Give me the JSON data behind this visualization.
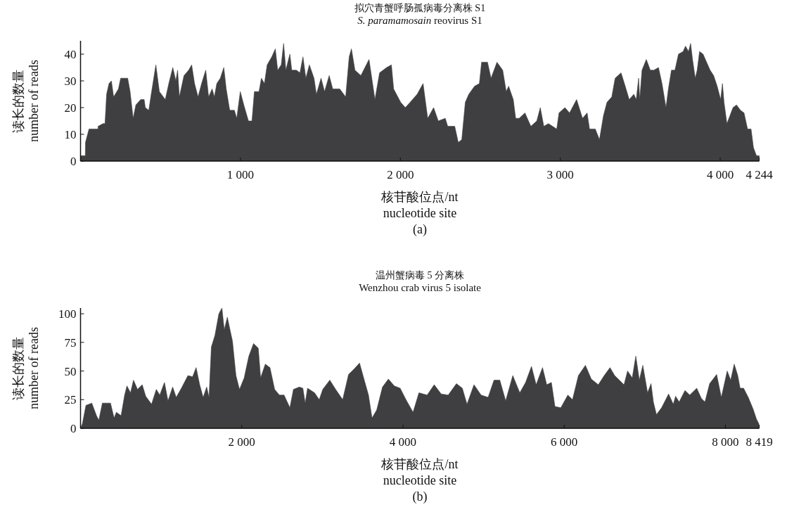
{
  "chart_data": [
    {
      "type": "area",
      "title": "拟穴青蟹呼肠孤病毒分离株 S1",
      "subtitle": "*S. paramamosain* reovirus S1",
      "xlabel": "核苷酸位点/nt\nnucleotide site",
      "ylabel": "读长的数量\nnumber of reads",
      "annotations": [
        "(a)"
      ],
      "color": "#3f3f42",
      "x": [
        0,
        30,
        31,
        53,
        109,
        110,
        141,
        153,
        163,
        178,
        193,
        207,
        237,
        251,
        295,
        310,
        329,
        346,
        376,
        398,
        405,
        427,
        442,
        471,
        493,
        530,
        552,
        577,
        596,
        607,
        618,
        647,
        676,
        695,
        713,
        735,
        757,
        783,
        801,
        823,
        837,
        852,
        874,
        896,
        911,
        933,
        962,
        977,
        999,
        1021,
        1050,
        1072,
        1087,
        1116,
        1131,
        1150,
        1167,
        1196,
        1218,
        1233,
        1255,
        1270,
        1284,
        1309,
        1321,
        1350,
        1372,
        1391,
        1409,
        1431,
        1460,
        1475,
        1504,
        1526,
        1555,
        1577,
        1621,
        1658,
        1680,
        1694,
        1716,
        1753,
        1804,
        1841,
        1870,
        1914,
        1944,
        1958,
        2002,
        2031,
        2061,
        2105,
        2142,
        2171,
        2208,
        2237,
        2281,
        2296,
        2340,
        2362,
        2384,
        2406,
        2428,
        2464,
        2494,
        2508,
        2545,
        2567,
        2604,
        2640,
        2662,
        2677,
        2706,
        2721,
        2743,
        2779,
        2816,
        2853,
        2875,
        2897,
        2926,
        2978,
        2992,
        3029,
        3058,
        3102,
        3139,
        3168,
        3183,
        3219,
        3245,
        3270,
        3292,
        3322,
        3343,
        3380,
        3401,
        3431,
        3460,
        3475,
        3490,
        3497,
        3511,
        3538,
        3563,
        3585,
        3614,
        3636,
        3661,
        3676,
        3695,
        3717,
        3739,
        3768,
        3783,
        3802,
        3815,
        3827,
        3844,
        3856,
        3871,
        3893,
        3915,
        3937,
        3959,
        3981,
        4003,
        4014,
        4024,
        4042,
        4061,
        4080,
        4102,
        4127,
        4149,
        4171,
        4193,
        4208,
        4227,
        4244
      ],
      "values": [
        2,
        2,
        7,
        12,
        12,
        13,
        14,
        14,
        25,
        29,
        30,
        24,
        27,
        31,
        31,
        26,
        16,
        21,
        23,
        23,
        20,
        19,
        25,
        36,
        26,
        23,
        29,
        35,
        30,
        34,
        24,
        32,
        34,
        36,
        29,
        24,
        29,
        34,
        24,
        27,
        24,
        29,
        31,
        35,
        27,
        19,
        19,
        16,
        26,
        21,
        15,
        15,
        26,
        26,
        31,
        29,
        36,
        39,
        42,
        34,
        36,
        44,
        34,
        40,
        34,
        34,
        33,
        39,
        31,
        36,
        31,
        25,
        31,
        26,
        32,
        27,
        27,
        24,
        39,
        42,
        34,
        32,
        38,
        23,
        33,
        35,
        36,
        27,
        22,
        20,
        22,
        25,
        29,
        16,
        20,
        15,
        16,
        13,
        13,
        7,
        8,
        22,
        25,
        28,
        29,
        37,
        37,
        31,
        37,
        34,
        26,
        28,
        23,
        16,
        16,
        18,
        13,
        15,
        20,
        13,
        14,
        12,
        18,
        20,
        18,
        23,
        16,
        18,
        12,
        12,
        8,
        17,
        22,
        24,
        31,
        33,
        29,
        23,
        25,
        23,
        31,
        23,
        34,
        38,
        34,
        34,
        35,
        29,
        20,
        27,
        34,
        34,
        40,
        41,
        43,
        41,
        44,
        38,
        31,
        34,
        41,
        40,
        37,
        34,
        32,
        28,
        23,
        29,
        22,
        14,
        17,
        20,
        21,
        19,
        18,
        12,
        12,
        5,
        2,
        2
      ],
      "xlim": [
        0,
        4244
      ],
      "ylim": [
        0,
        45
      ],
      "xticks": [
        {
          "value": 1000,
          "label": "1 000"
        },
        {
          "value": 2000,
          "label": "2 000"
        },
        {
          "value": 3000,
          "label": "3 000"
        },
        {
          "value": 4000,
          "label": "4 000"
        },
        {
          "value": 4244,
          "label": "4 244"
        }
      ],
      "yticks": [
        0,
        10,
        20,
        30,
        40
      ]
    },
    {
      "type": "area",
      "title": "温州蟹病毒 5 分离株",
      "subtitle": "Wenzhou crab virus 5 isolate",
      "xlabel": "核苷酸位点/nt\nnucleotide site",
      "ylabel": "读长的数量\nnumber of reads",
      "annotations": [
        "(b)"
      ],
      "color": "#3f3f42",
      "x": [
        0,
        23,
        67,
        140,
        198,
        227,
        271,
        372,
        416,
        445,
        503,
        547,
        576,
        620,
        657,
        707,
        765,
        809,
        881,
        940,
        983,
        1041,
        1085,
        1143,
        1187,
        1259,
        1332,
        1390,
        1434,
        1478,
        1521,
        1565,
        1594,
        1623,
        1667,
        1716,
        1754,
        1783,
        1821,
        1885,
        1928,
        1972,
        2030,
        2088,
        2146,
        2205,
        2234,
        2292,
        2350,
        2408,
        2467,
        2525,
        2597,
        2641,
        2714,
        2758,
        2787,
        2816,
        2903,
        2961,
        3005,
        3092,
        3165,
        3252,
        3325,
        3397,
        3461,
        3528,
        3572,
        3616,
        3674,
        3746,
        3819,
        3892,
        3965,
        4037,
        4125,
        4198,
        4300,
        4387,
        4474,
        4561,
        4663,
        4736,
        4794,
        4881,
        4969,
        5056,
        5129,
        5201,
        5274,
        5362,
        5449,
        5521,
        5594,
        5652,
        5731,
        5783,
        5841,
        5885,
        5958,
        6045,
        6103,
        6176,
        6263,
        6336,
        6423,
        6496,
        6568,
        6626,
        6684,
        6742,
        6786,
        6844,
        6888,
        6932,
        6975,
        7034,
        7077,
        7106,
        7144,
        7208,
        7295,
        7353,
        7382,
        7426,
        7498,
        7557,
        7644,
        7702,
        7746,
        7804,
        7891,
        7949,
        8022,
        8065,
        8109,
        8153,
        8182,
        8225,
        8283,
        8342,
        8385,
        8414,
        8419
      ],
      "values": [
        0,
        4,
        20,
        22,
        11,
        7,
        22,
        22,
        9,
        14,
        11,
        29,
        37,
        31,
        42,
        34,
        38,
        28,
        21,
        34,
        29,
        40,
        24,
        36,
        27,
        36,
        46,
        45,
        53,
        38,
        27,
        36,
        27,
        71,
        81,
        100,
        105,
        86,
        97,
        76,
        46,
        34,
        44,
        63,
        74,
        70,
        44,
        56,
        53,
        34,
        29,
        29,
        18,
        34,
        36,
        35,
        22,
        35,
        31,
        25,
        34,
        42,
        34,
        25,
        47,
        52,
        57,
        40,
        29,
        9,
        16,
        36,
        43,
        37,
        35,
        25,
        14,
        31,
        29,
        38,
        30,
        29,
        39,
        35,
        21,
        38,
        29,
        27,
        42,
        42,
        24,
        46,
        31,
        40,
        54,
        38,
        53,
        38,
        40,
        19,
        18,
        29,
        25,
        46,
        55,
        43,
        38,
        46,
        53,
        46,
        42,
        38,
        50,
        44,
        63,
        42,
        55,
        31,
        39,
        23,
        12,
        18,
        30,
        21,
        28,
        23,
        33,
        29,
        35,
        26,
        23,
        39,
        47,
        27,
        50,
        42,
        56,
        46,
        35,
        35,
        27,
        17,
        8,
        4,
        0
      ],
      "xlim": [
        0,
        8419
      ],
      "ylim": [
        0,
        105
      ],
      "xticks": [
        {
          "value": 2000,
          "label": "2 000"
        },
        {
          "value": 4000,
          "label": "4 000"
        },
        {
          "value": 6000,
          "label": "6 000"
        },
        {
          "value": 8000,
          "label": "8 000"
        },
        {
          "value": 8419,
          "label": "8 419"
        }
      ],
      "yticks": [
        0,
        25,
        50,
        75,
        100
      ]
    }
  ]
}
